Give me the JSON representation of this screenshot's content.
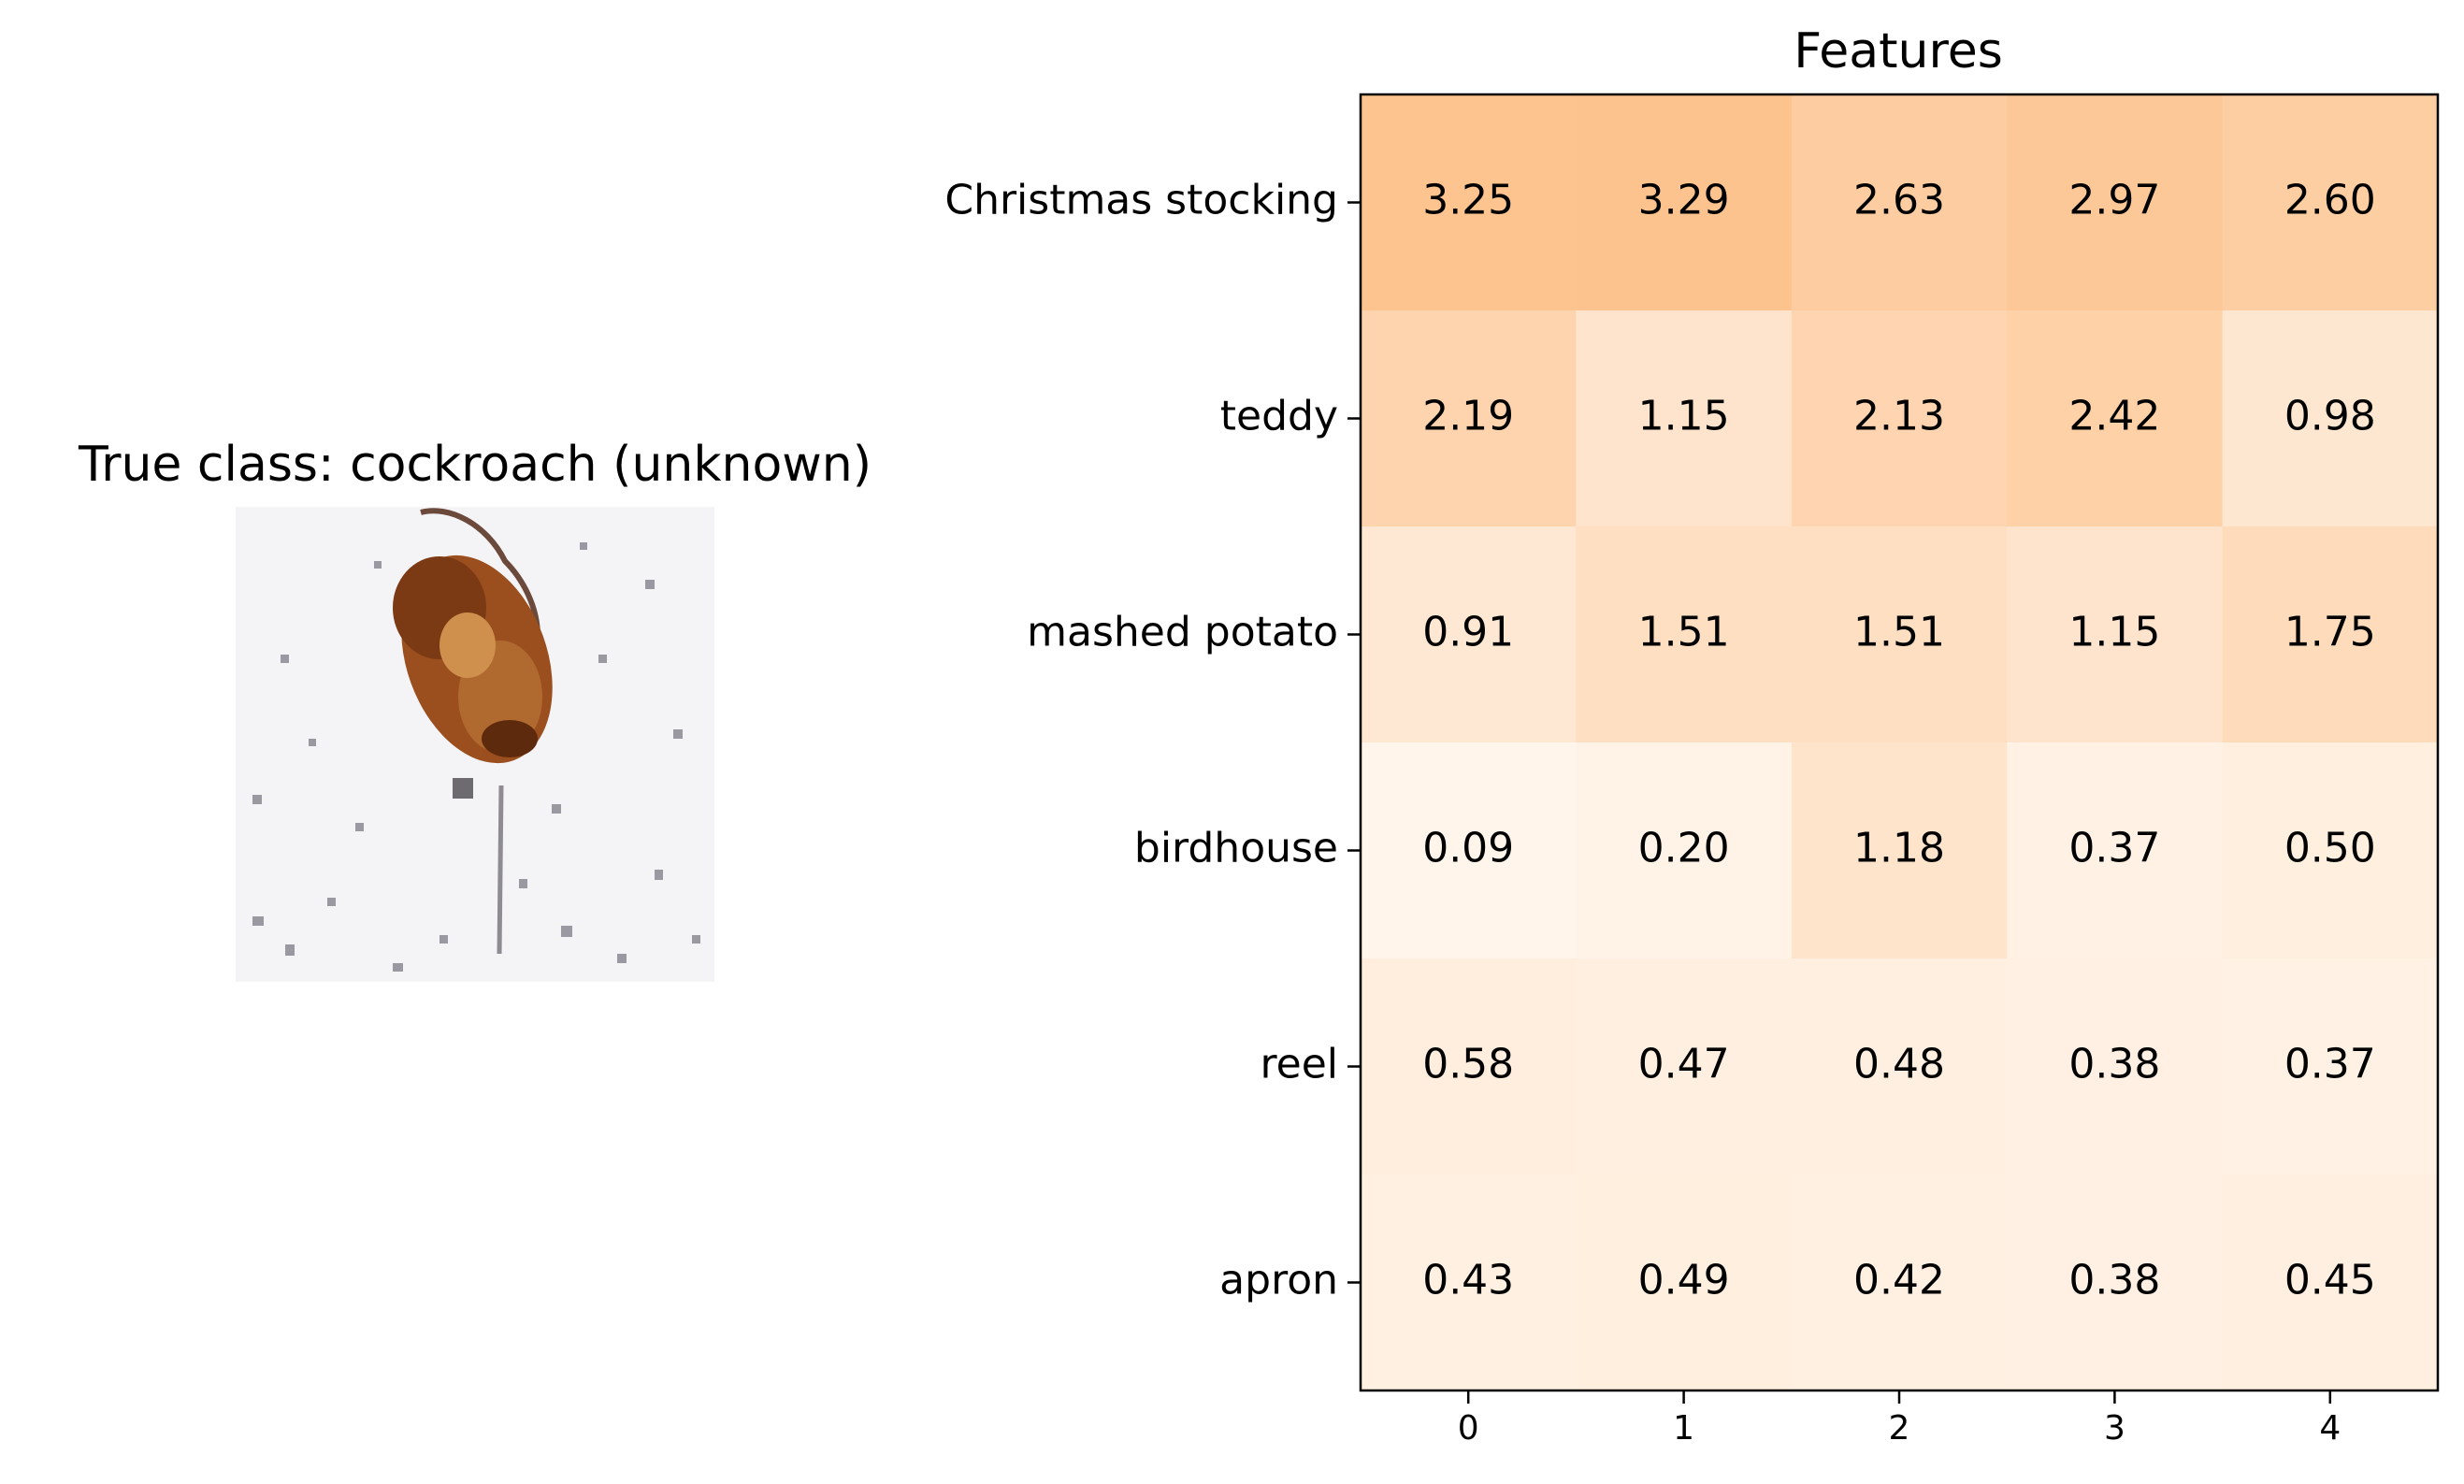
{
  "image_panel": {
    "title": "True class: cockroach (unknown)"
  },
  "chart_data": {
    "type": "heatmap",
    "title": "Features",
    "xlabel": "",
    "ylabel": "",
    "x_categories": [
      "0",
      "1",
      "2",
      "3",
      "4"
    ],
    "y_categories": [
      "Christmas stocking",
      "teddy",
      "mashed potato",
      "birdhouse",
      "reel",
      "apron"
    ],
    "values": [
      [
        3.25,
        3.29,
        2.63,
        2.97,
        2.6
      ],
      [
        2.19,
        1.15,
        2.13,
        2.42,
        0.98
      ],
      [
        0.91,
        1.51,
        1.51,
        1.15,
        1.75
      ],
      [
        0.09,
        0.2,
        1.18,
        0.37,
        0.5
      ],
      [
        0.58,
        0.47,
        0.48,
        0.38,
        0.37
      ],
      [
        0.43,
        0.49,
        0.42,
        0.38,
        0.45
      ]
    ],
    "value_format": "2 decimals",
    "colormap": {
      "low": "#fff5eb",
      "high": "#fdc38e"
    },
    "grid": false,
    "legend": "none"
  }
}
